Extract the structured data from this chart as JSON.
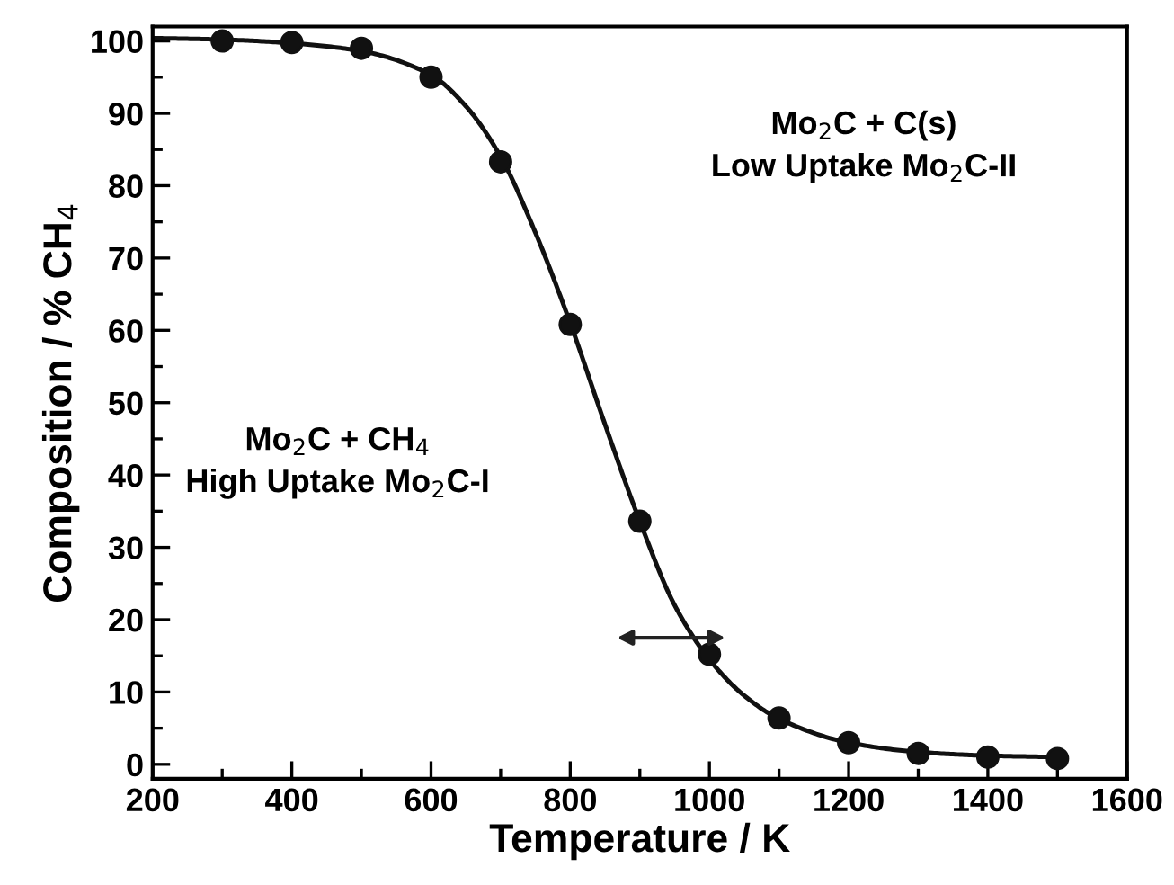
{
  "chart_data": {
    "type": "scatter",
    "xlabel": "Temperature / K",
    "ylabel": "Composition / % CH$_{4}$",
    "xlim": [
      200,
      1600
    ],
    "xticks": [
      200,
      400,
      600,
      800,
      1000,
      1200,
      1400,
      1600
    ],
    "ylim": [
      -2,
      102
    ],
    "yticks": [
      0,
      10,
      20,
      30,
      40,
      50,
      60,
      70,
      80,
      90,
      100
    ],
    "grid": false,
    "annotations": [
      "Mo$_{2}$C + C(s)\nLow Uptake Mo$_{2}$C-II",
      "Mo$_{2}$C + CH$_{4}$\nHigh Uptake Mo$_{2}$C-I"
    ],
    "series": [
      {
        "type": "line",
        "marker": "none",
        "color": "#111111",
        "line_style": "solid",
        "x": [
          200,
          300,
          400,
          500,
          600,
          650,
          700,
          750,
          800,
          850,
          900,
          950,
          1000,
          1050,
          1100,
          1200,
          1300,
          1400,
          1500
        ],
        "values": [
          100.4,
          100.2,
          99.7,
          98.6,
          95.3,
          91,
          84,
          73.5,
          61,
          47,
          33.6,
          22,
          14.5,
          9.5,
          6.3,
          3,
          1.7,
          1.2,
          1.0
        ]
      },
      {
        "marker": "circle",
        "color": "#111111",
        "x": [
          300,
          400,
          500,
          600,
          700,
          800,
          900,
          1000,
          1100,
          1200,
          1300,
          1400,
          1500
        ],
        "values": [
          100,
          99.8,
          99,
          95,
          83.3,
          60.8,
          33.6,
          15.2,
          6.4,
          3,
          1.5,
          1,
          0.8
        ]
      }
    ]
  }
}
